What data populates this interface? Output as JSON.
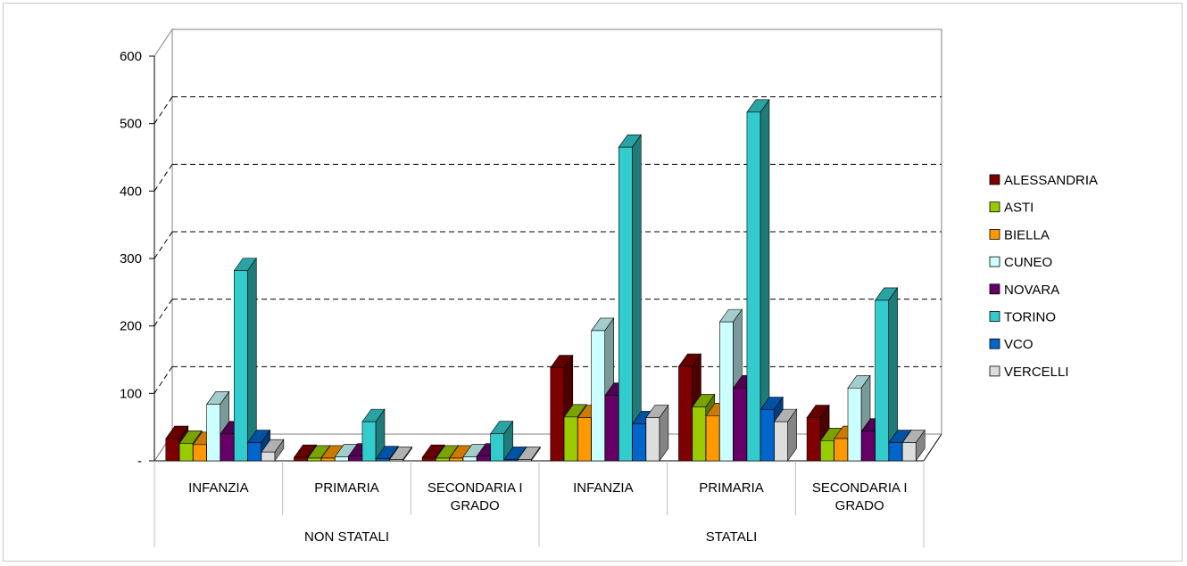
{
  "chart_data": {
    "type": "bar",
    "style": "3d-clustered",
    "categories": [
      {
        "group": "NON STATALI",
        "label": [
          "INFANZIA"
        ]
      },
      {
        "group": "NON STATALI",
        "label": [
          "PRIMARIA"
        ]
      },
      {
        "group": "NON STATALI",
        "label": [
          "SECONDARIA I",
          "GRADO"
        ]
      },
      {
        "group": "STATALI",
        "label": [
          "INFANZIA"
        ]
      },
      {
        "group": "STATALI",
        "label": [
          "PRIMARIA"
        ]
      },
      {
        "group": "STATALI",
        "label": [
          "SECONDARIA I",
          "GRADO"
        ]
      }
    ],
    "groups": [
      "NON STATALI",
      "STATALI"
    ],
    "series": [
      {
        "name": "ALESSANDRIA",
        "color": "#7f0000",
        "values": [
          33,
          5,
          5,
          138,
          140,
          64
        ]
      },
      {
        "name": "ASTI",
        "color": "#99cc00",
        "values": [
          26,
          4,
          4,
          65,
          80,
          30
        ]
      },
      {
        "name": "BIELLA",
        "color": "#ff9900",
        "values": [
          24,
          4,
          4,
          64,
          67,
          33
        ]
      },
      {
        "name": "CUNEO",
        "color": "#ccffff",
        "values": [
          84,
          6,
          6,
          193,
          206,
          108
        ]
      },
      {
        "name": "NOVARA",
        "color": "#660066",
        "values": [
          40,
          7,
          7,
          97,
          108,
          44
        ]
      },
      {
        "name": "TORINO",
        "color": "#33cccc",
        "values": [
          282,
          58,
          40,
          465,
          517,
          238
        ]
      },
      {
        "name": "VCO",
        "color": "#0066cc",
        "values": [
          27,
          3,
          2,
          55,
          76,
          27
        ]
      },
      {
        "name": "VERCELLI",
        "color": "#dddddd",
        "values": [
          13,
          2,
          2,
          64,
          58,
          27
        ]
      }
    ],
    "yticks": [
      "-",
      "100",
      "200",
      "300",
      "400",
      "500",
      "600"
    ],
    "ylim": [
      0,
      600
    ],
    "grid": "dashed",
    "legend": "right"
  }
}
